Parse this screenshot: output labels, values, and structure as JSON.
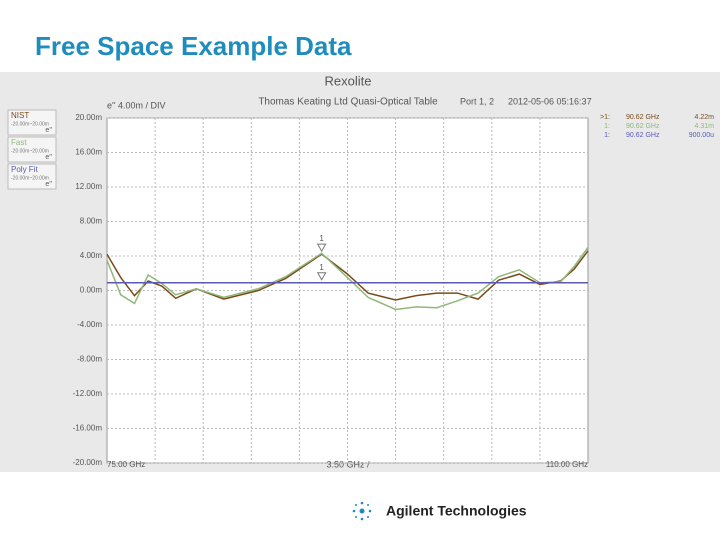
{
  "page_title": "Free Space Example Data",
  "logo": "Agilent Technologies",
  "chart_data": {
    "type": "line",
    "title": "Rexolite",
    "subtitle": "Thomas Keating Ltd Quasi-Optical Table",
    "port_label": "Port 1, 2",
    "timestamp": "2012-05-06 05:16:37",
    "y_scale_label": "e'' 4.00m / DIV",
    "x_div": {
      "value": 3.5,
      "label": "3.50 GHz /"
    },
    "xlim": [
      75,
      110
    ],
    "xticks": [
      {
        "value": 75,
        "label": "75.00 GHz"
      },
      {
        "value": 110,
        "label": "110.00 GHz"
      }
    ],
    "ylim": [
      -20,
      20
    ],
    "yticks": [
      {
        "value": 20,
        "label": "20.00m"
      },
      {
        "value": 16,
        "label": "16.00m"
      },
      {
        "value": 12,
        "label": "12.00m"
      },
      {
        "value": 8,
        "label": "8.00m"
      },
      {
        "value": 4,
        "label": "4.00m"
      },
      {
        "value": 0,
        "label": "0.00m"
      },
      {
        "value": -4,
        "label": "-4.00m"
      },
      {
        "value": -8,
        "label": "-8.00m"
      },
      {
        "value": -12,
        "label": "-12.00m"
      },
      {
        "value": -16,
        "label": "-16.00m"
      },
      {
        "value": -20,
        "label": "-20.00m"
      }
    ],
    "grid": true,
    "x": [
      75,
      76,
      77,
      78,
      79,
      80,
      81.5,
      83.5,
      86,
      88,
      90.62,
      92.5,
      94,
      96,
      97.5,
      99,
      100.5,
      102,
      103.5,
      105,
      106.5,
      108,
      109,
      110
    ],
    "series": [
      {
        "name": "NIST",
        "scale_label": "-20.00m~20.00m",
        "format": "e''",
        "color": "#7a4a1a",
        "values": [
          4.2,
          1.5,
          -0.6,
          1.1,
          0.5,
          -0.9,
          0.2,
          -1.0,
          0.0,
          1.4,
          4.22,
          1.9,
          -0.3,
          -1.1,
          -0.6,
          -0.3,
          -0.3,
          -1.0,
          1.2,
          1.9,
          0.7,
          1.1,
          2.5,
          4.6
        ]
      },
      {
        "name": "Fast",
        "scale_label": "-20.00m~20.00m",
        "format": "e''",
        "color": "#8fb87a",
        "values": [
          3.5,
          -0.5,
          -1.5,
          1.8,
          0.8,
          -0.5,
          0.2,
          -0.8,
          0.2,
          1.6,
          4.31,
          1.5,
          -0.8,
          -2.2,
          -1.9,
          -2.0,
          -1.2,
          -0.3,
          1.6,
          2.4,
          0.9,
          1.0,
          2.8,
          5.0
        ]
      },
      {
        "name": "Poly Fit",
        "scale_label": "-20.00m~20.00m",
        "format": "e''",
        "color": "#5a5ab4",
        "values": [
          0.9,
          0.9,
          0.9,
          0.9,
          0.9,
          0.9,
          0.9,
          0.9,
          0.9,
          0.9,
          0.9,
          0.9,
          0.9,
          0.9,
          0.9,
          0.9,
          0.9,
          0.9,
          0.9,
          0.9,
          0.9,
          0.9,
          0.9,
          0.9
        ]
      }
    ],
    "markers": [
      {
        "label": "1",
        "x": 90.62,
        "y": 4.22
      },
      {
        "label": "1",
        "x": 90.62,
        "y": 0.9
      }
    ],
    "marker_readouts": [
      {
        "id": ">1:",
        "freq": "90.62 GHz",
        "value": "4.22m"
      },
      {
        "id": "1:",
        "freq": "90.62 GHz",
        "value": "4.31m"
      },
      {
        "id": "1:",
        "freq": "90.62 GHz",
        "value": "900.00u"
      }
    ]
  }
}
